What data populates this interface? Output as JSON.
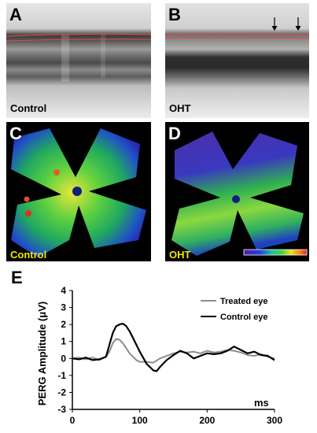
{
  "panels": {
    "a": {
      "letter": "A",
      "caption": "Control"
    },
    "b": {
      "letter": "B",
      "caption": "OHT"
    },
    "c": {
      "letter": "C",
      "caption": "Control"
    },
    "d": {
      "letter": "D",
      "caption": "OHT"
    }
  },
  "colors": {
    "oct_line": "#e04a4a",
    "caption_yellow": "#f2e600",
    "treated": "#8c8c8c",
    "control": "#000000"
  },
  "chart_data": {
    "type": "line",
    "panel_letter": "E",
    "title": "",
    "xlabel": "ms",
    "ylabel": "PERG Amplitude (μV)",
    "xlim": [
      0,
      300
    ],
    "ylim": [
      -3,
      4
    ],
    "xticks": [
      0,
      100,
      200,
      300
    ],
    "yticks": [
      4,
      3,
      2,
      1,
      0,
      -1,
      -2,
      -3
    ],
    "grid": false,
    "legend_position": "top-right",
    "series": [
      {
        "name": "Treated eye",
        "color": "#8c8c8c",
        "x": [
          0,
          10,
          20,
          30,
          40,
          50,
          55,
          60,
          65,
          70,
          75,
          80,
          85,
          90,
          95,
          100,
          110,
          120,
          130,
          140,
          150,
          160,
          170,
          180,
          190,
          200,
          210,
          220,
          230,
          240,
          250,
          260,
          270,
          280,
          290,
          300
        ],
        "y": [
          0,
          0.05,
          -0.05,
          0.05,
          -0.1,
          0.1,
          0.4,
          0.9,
          1.15,
          1.1,
          0.9,
          0.6,
          0.3,
          0.1,
          -0.1,
          -0.2,
          -0.2,
          -0.25,
          0.0,
          0.15,
          0.3,
          0.4,
          0.35,
          0.4,
          0.3,
          0.45,
          0.35,
          0.4,
          0.5,
          0.45,
          0.35,
          0.2,
          0.15,
          0.25,
          0.1,
          0.0
        ]
      },
      {
        "name": "Control eye",
        "color": "#000000",
        "x": [
          0,
          10,
          20,
          30,
          40,
          50,
          55,
          60,
          65,
          70,
          75,
          80,
          85,
          90,
          95,
          100,
          110,
          120,
          125,
          130,
          140,
          150,
          160,
          170,
          180,
          190,
          200,
          210,
          220,
          230,
          240,
          250,
          260,
          270,
          280,
          290,
          300
        ],
        "y": [
          0,
          -0.05,
          0.05,
          -0.1,
          -0.05,
          0.1,
          0.8,
          1.5,
          1.9,
          2.0,
          2.05,
          1.9,
          1.6,
          1.2,
          0.8,
          0.4,
          -0.3,
          -0.7,
          -0.75,
          -0.5,
          -0.1,
          0.2,
          0.45,
          0.3,
          0.0,
          0.15,
          0.3,
          0.25,
          0.3,
          0.45,
          0.7,
          0.5,
          0.3,
          0.4,
          0.2,
          0.15,
          -0.1
        ]
      }
    ]
  }
}
